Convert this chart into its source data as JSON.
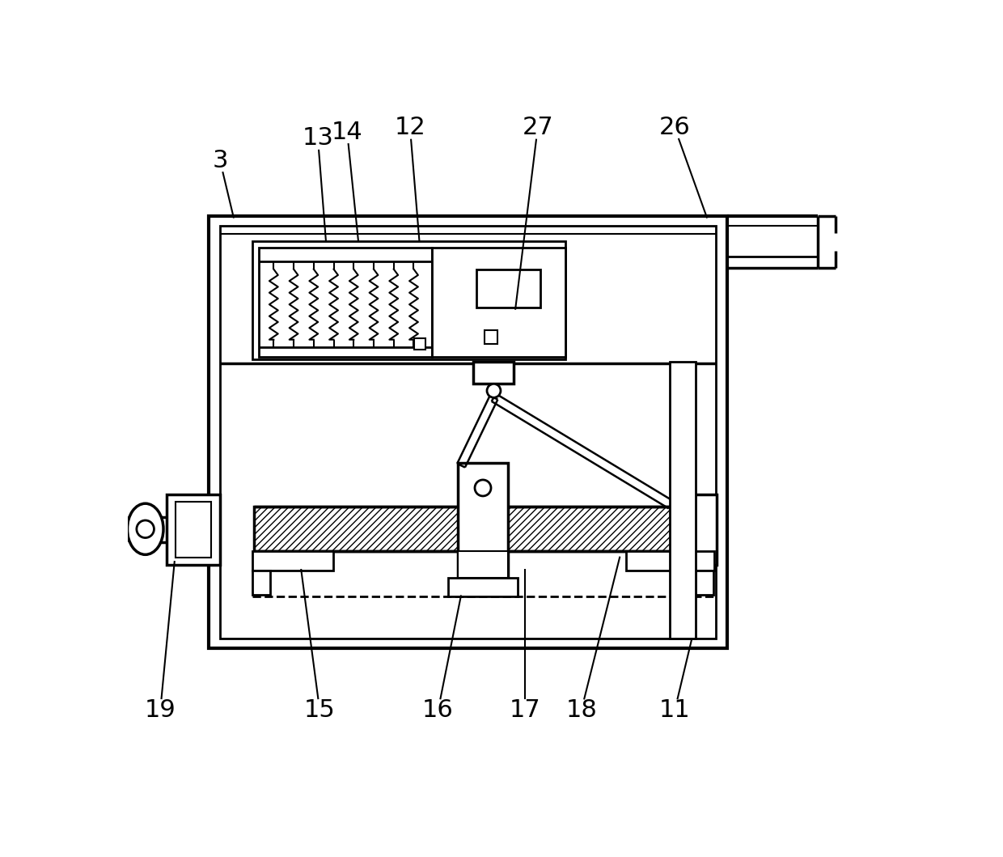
{
  "bg_color": "#ffffff",
  "line_color": "#000000",
  "figsize": [
    12.4,
    10.59
  ],
  "dpi": 100,
  "label_fontsize": 22,
  "labels_info": [
    [
      "3",
      148,
      93,
      170,
      185
    ],
    [
      "13",
      305,
      57,
      318,
      222
    ],
    [
      "14",
      352,
      47,
      370,
      222
    ],
    [
      "12",
      453,
      40,
      468,
      222
    ],
    [
      "27",
      658,
      40,
      622,
      332
    ],
    [
      "26",
      878,
      40,
      930,
      185
    ],
    [
      "19",
      52,
      975,
      75,
      735
    ],
    [
      "15",
      308,
      975,
      278,
      748
    ],
    [
      "16",
      498,
      975,
      535,
      790
    ],
    [
      "17",
      638,
      975,
      638,
      748
    ],
    [
      "18",
      728,
      975,
      790,
      728
    ],
    [
      "11",
      878,
      975,
      905,
      862
    ]
  ]
}
